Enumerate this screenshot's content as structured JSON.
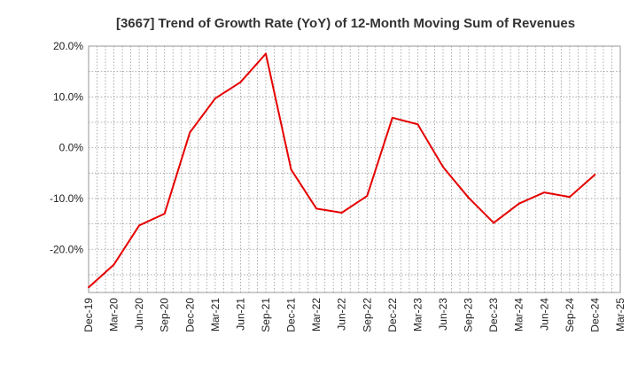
{
  "chart_data": {
    "type": "line",
    "title": "[3667]  Trend of Growth Rate (YoY) of 12-Month Moving Sum of Revenues",
    "xlabel": "",
    "ylabel": "",
    "ylim": [
      -28.5,
      20.0
    ],
    "y_ticks": [
      20.0,
      10.0,
      0.0,
      -10.0,
      -20.0
    ],
    "y_tick_labels": [
      "20.0%",
      "10.0%",
      "0.0%",
      "-10.0%",
      "-20.0%"
    ],
    "x_tick_labels": [
      "Dec-19",
      "Mar-20",
      "Jun-20",
      "Sep-20",
      "Dec-20",
      "Mar-21",
      "Jun-21",
      "Sep-21",
      "Dec-21",
      "Mar-22",
      "Jun-22",
      "Sep-22",
      "Dec-22",
      "Mar-23",
      "Jun-23",
      "Sep-23",
      "Dec-23",
      "Mar-24",
      "Jun-24",
      "Sep-24",
      "Dec-24",
      "Mar-25"
    ],
    "grid": true,
    "line_color": "#e60000",
    "series": [
      {
        "name": "",
        "x": [
          "Dec-19",
          "Mar-20",
          "Jun-20",
          "Sep-20",
          "Dec-20",
          "Mar-21",
          "Jun-21",
          "Sep-21",
          "Dec-21",
          "Mar-22",
          "Jun-22",
          "Sep-22",
          "Dec-22",
          "Mar-23",
          "Jun-23",
          "Sep-23",
          "Dec-23",
          "Mar-24",
          "Jun-24",
          "Sep-24",
          "Dec-24"
        ],
        "values": [
          -27.5,
          -23.0,
          -15.3,
          -13.0,
          3.0,
          9.7,
          12.9,
          18.5,
          -4.3,
          -12.0,
          -12.8,
          -9.5,
          5.9,
          4.6,
          -3.8,
          -9.8,
          -14.8,
          -11.0,
          -8.8,
          -9.7,
          -5.3
        ]
      }
    ]
  }
}
